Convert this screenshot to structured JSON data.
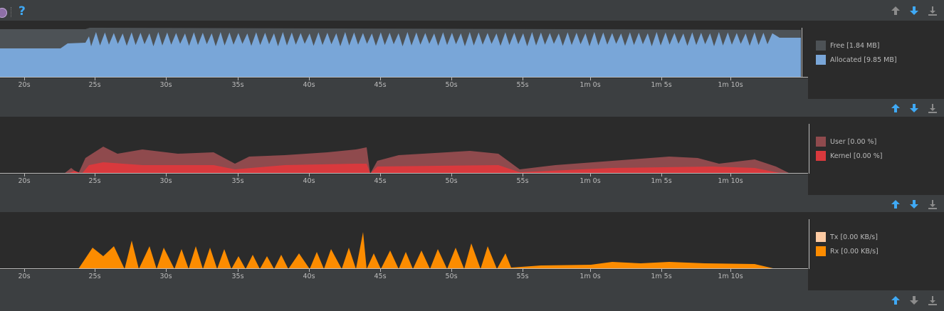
{
  "toolbar": {
    "help_glyph": "?"
  },
  "ticks": [
    "20s",
    "25s",
    "30s",
    "35s",
    "40s",
    "45s",
    "50s",
    "55s",
    "1m 0s",
    "1m 5s",
    "1m 10s"
  ],
  "memory": {
    "legend": [
      {
        "label": "Free [1.84 MB]",
        "color": "#4d5256"
      },
      {
        "label": "Allocated [9.85 MB]",
        "color": "#79a6d8"
      }
    ]
  },
  "cpu": {
    "legend": [
      {
        "label": "User [0.00 %]",
        "color": "#8f4a4d"
      },
      {
        "label": "Kernel [0.00 %]",
        "color": "#d9393d"
      }
    ]
  },
  "network": {
    "legend": [
      {
        "label": "Tx [0.00 KB/s]",
        "color": "#fdcba3"
      },
      {
        "label": "Rx [0.00 KB/s]",
        "color": "#fc8c00"
      }
    ]
  },
  "colors": {
    "accent_blue": "#3fa9f5",
    "disabled_gray": "#8c8c8c"
  }
}
